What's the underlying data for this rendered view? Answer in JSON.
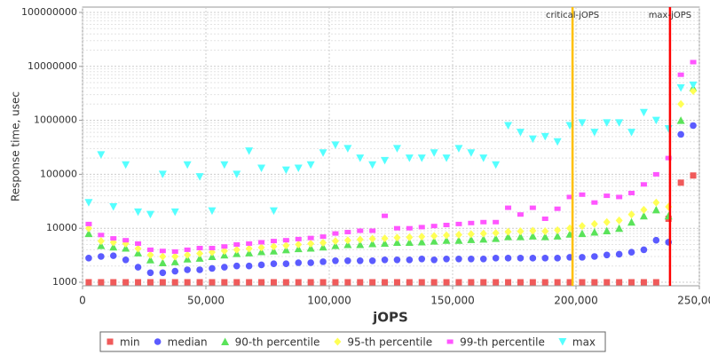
{
  "chart_data": {
    "type": "scatter",
    "x_label": "jOPS",
    "y_label": "Response time, usec",
    "log_y": true,
    "grid": true,
    "legend": "bottom",
    "xlim": [
      0,
      250000
    ],
    "xticks": [
      0,
      {
        "value": 50000,
        "label": "50,000"
      },
      {
        "value": 100000,
        "label": "100,000"
      },
      {
        "value": 150000,
        "label": "150,000"
      },
      {
        "value": 200000,
        "label": "200,000"
      },
      {
        "value": 250000,
        "label": "250,000"
      }
    ],
    "ylim": [
      1000,
      100000000
    ],
    "yticks": [
      1000,
      10000,
      100000,
      1000000,
      10000000,
      100000000
    ],
    "annotations": [
      {
        "label": "critical-jOPS",
        "x": 198600,
        "color": "#ffc000"
      },
      {
        "label": "max-jOPS",
        "x": 238100,
        "color": "#ff0000"
      }
    ],
    "x": [
      2500,
      7500,
      12500,
      17500,
      22500,
      27500,
      32500,
      37500,
      42500,
      47500,
      52500,
      57500,
      62500,
      67500,
      72500,
      77500,
      82500,
      87500,
      92500,
      97500,
      102500,
      107500,
      112500,
      117500,
      122500,
      127500,
      132500,
      137500,
      142500,
      147500,
      152500,
      157500,
      162500,
      167500,
      172500,
      177500,
      182500,
      187500,
      192500,
      197500,
      202500,
      207500,
      212500,
      217500,
      222500,
      227500,
      232500,
      237500,
      242500,
      247500
    ],
    "series": [
      {
        "name": "min",
        "color": "#f05a5a",
        "marker": "square",
        "values": [
          1000,
          1000,
          1000,
          1000,
          1000,
          1000,
          1000,
          1000,
          1000,
          1000,
          1000,
          1000,
          1000,
          1000,
          1000,
          1000,
          1000,
          1000,
          1000,
          1000,
          1000,
          1000,
          1000,
          1000,
          1000,
          1000,
          1000,
          1000,
          1000,
          1000,
          1000,
          1000,
          1000,
          1000,
          1000,
          1000,
          1000,
          1000,
          1000,
          1000,
          1000,
          1000,
          1000,
          1000,
          1000,
          1000,
          1000,
          15000,
          70000,
          95000
        ]
      },
      {
        "name": "median",
        "color": "#5b5bff",
        "marker": "circle",
        "values": [
          2800,
          3000,
          3100,
          2600,
          1900,
          1500,
          1500,
          1600,
          1700,
          1700,
          1800,
          1900,
          2000,
          2000,
          2100,
          2200,
          2200,
          2300,
          2300,
          2400,
          2500,
          2500,
          2500,
          2500,
          2600,
          2600,
          2600,
          2700,
          2600,
          2700,
          2700,
          2700,
          2700,
          2800,
          2800,
          2800,
          2800,
          2800,
          2800,
          2900,
          2900,
          3000,
          3200,
          3300,
          3600,
          4000,
          6000,
          5500,
          550000,
          800000
        ]
      },
      {
        "name": "90-th percentile",
        "color": "#5ae35a",
        "marker": "triangle-up",
        "values": [
          8000,
          4800,
          4500,
          4300,
          3500,
          2600,
          2300,
          2400,
          2700,
          2800,
          3000,
          3200,
          3400,
          3500,
          3700,
          3800,
          4000,
          4200,
          4300,
          4500,
          4800,
          5000,
          5000,
          5200,
          5300,
          5500,
          5500,
          5600,
          5800,
          6000,
          6000,
          6200,
          6300,
          6500,
          7000,
          7000,
          7200,
          7000,
          7200,
          7800,
          8000,
          8500,
          9000,
          10000,
          13000,
          17000,
          22000,
          17000,
          1000000,
          4000000
        ]
      },
      {
        "name": "95-th percentile",
        "color": "#ffff55",
        "marker": "diamond",
        "values": [
          10000,
          5800,
          5500,
          5200,
          4200,
          3200,
          3000,
          3000,
          3200,
          3400,
          3600,
          3800,
          4000,
          4200,
          4400,
          4600,
          4800,
          5000,
          5200,
          5400,
          5800,
          6000,
          6200,
          6400,
          6500,
          6700,
          6800,
          7000,
          7200,
          7400,
          7600,
          7800,
          8000,
          8200,
          8600,
          8800,
          9000,
          8800,
          9200,
          10000,
          11000,
          12000,
          13000,
          14000,
          18000,
          22000,
          30000,
          25000,
          2000000,
          3500000
        ]
      },
      {
        "name": "99-th percentile",
        "color": "#ff55ff",
        "marker": "rect",
        "values": [
          12000,
          7500,
          6500,
          6000,
          5200,
          4000,
          3800,
          3700,
          4000,
          4300,
          4300,
          4600,
          5000,
          5200,
          5500,
          5800,
          6000,
          6300,
          6600,
          7000,
          8000,
          8500,
          9000,
          9000,
          17000,
          10000,
          10000,
          10500,
          11000,
          11500,
          12000,
          12500,
          13000,
          13000,
          24000,
          18000,
          24000,
          15000,
          23000,
          38000,
          42000,
          30000,
          40000,
          38000,
          45000,
          65000,
          100000,
          200000,
          7000000,
          12000000
        ]
      },
      {
        "name": "max",
        "color": "#55ffff",
        "marker": "triangle-down",
        "values": [
          30000,
          230000,
          25000,
          150000,
          20000,
          18000,
          100000,
          20000,
          150000,
          90000,
          21000,
          150000,
          100000,
          270000,
          130000,
          21000,
          120000,
          130000,
          150000,
          250000,
          350000,
          300000,
          200000,
          150000,
          180000,
          300000,
          200000,
          200000,
          250000,
          200000,
          300000,
          250000,
          200000,
          150000,
          800000,
          600000,
          450000,
          500000,
          400000,
          800000,
          900000,
          600000,
          900000,
          900000,
          600000,
          1400000,
          1000000,
          700000,
          4000000,
          4500000
        ]
      }
    ]
  }
}
